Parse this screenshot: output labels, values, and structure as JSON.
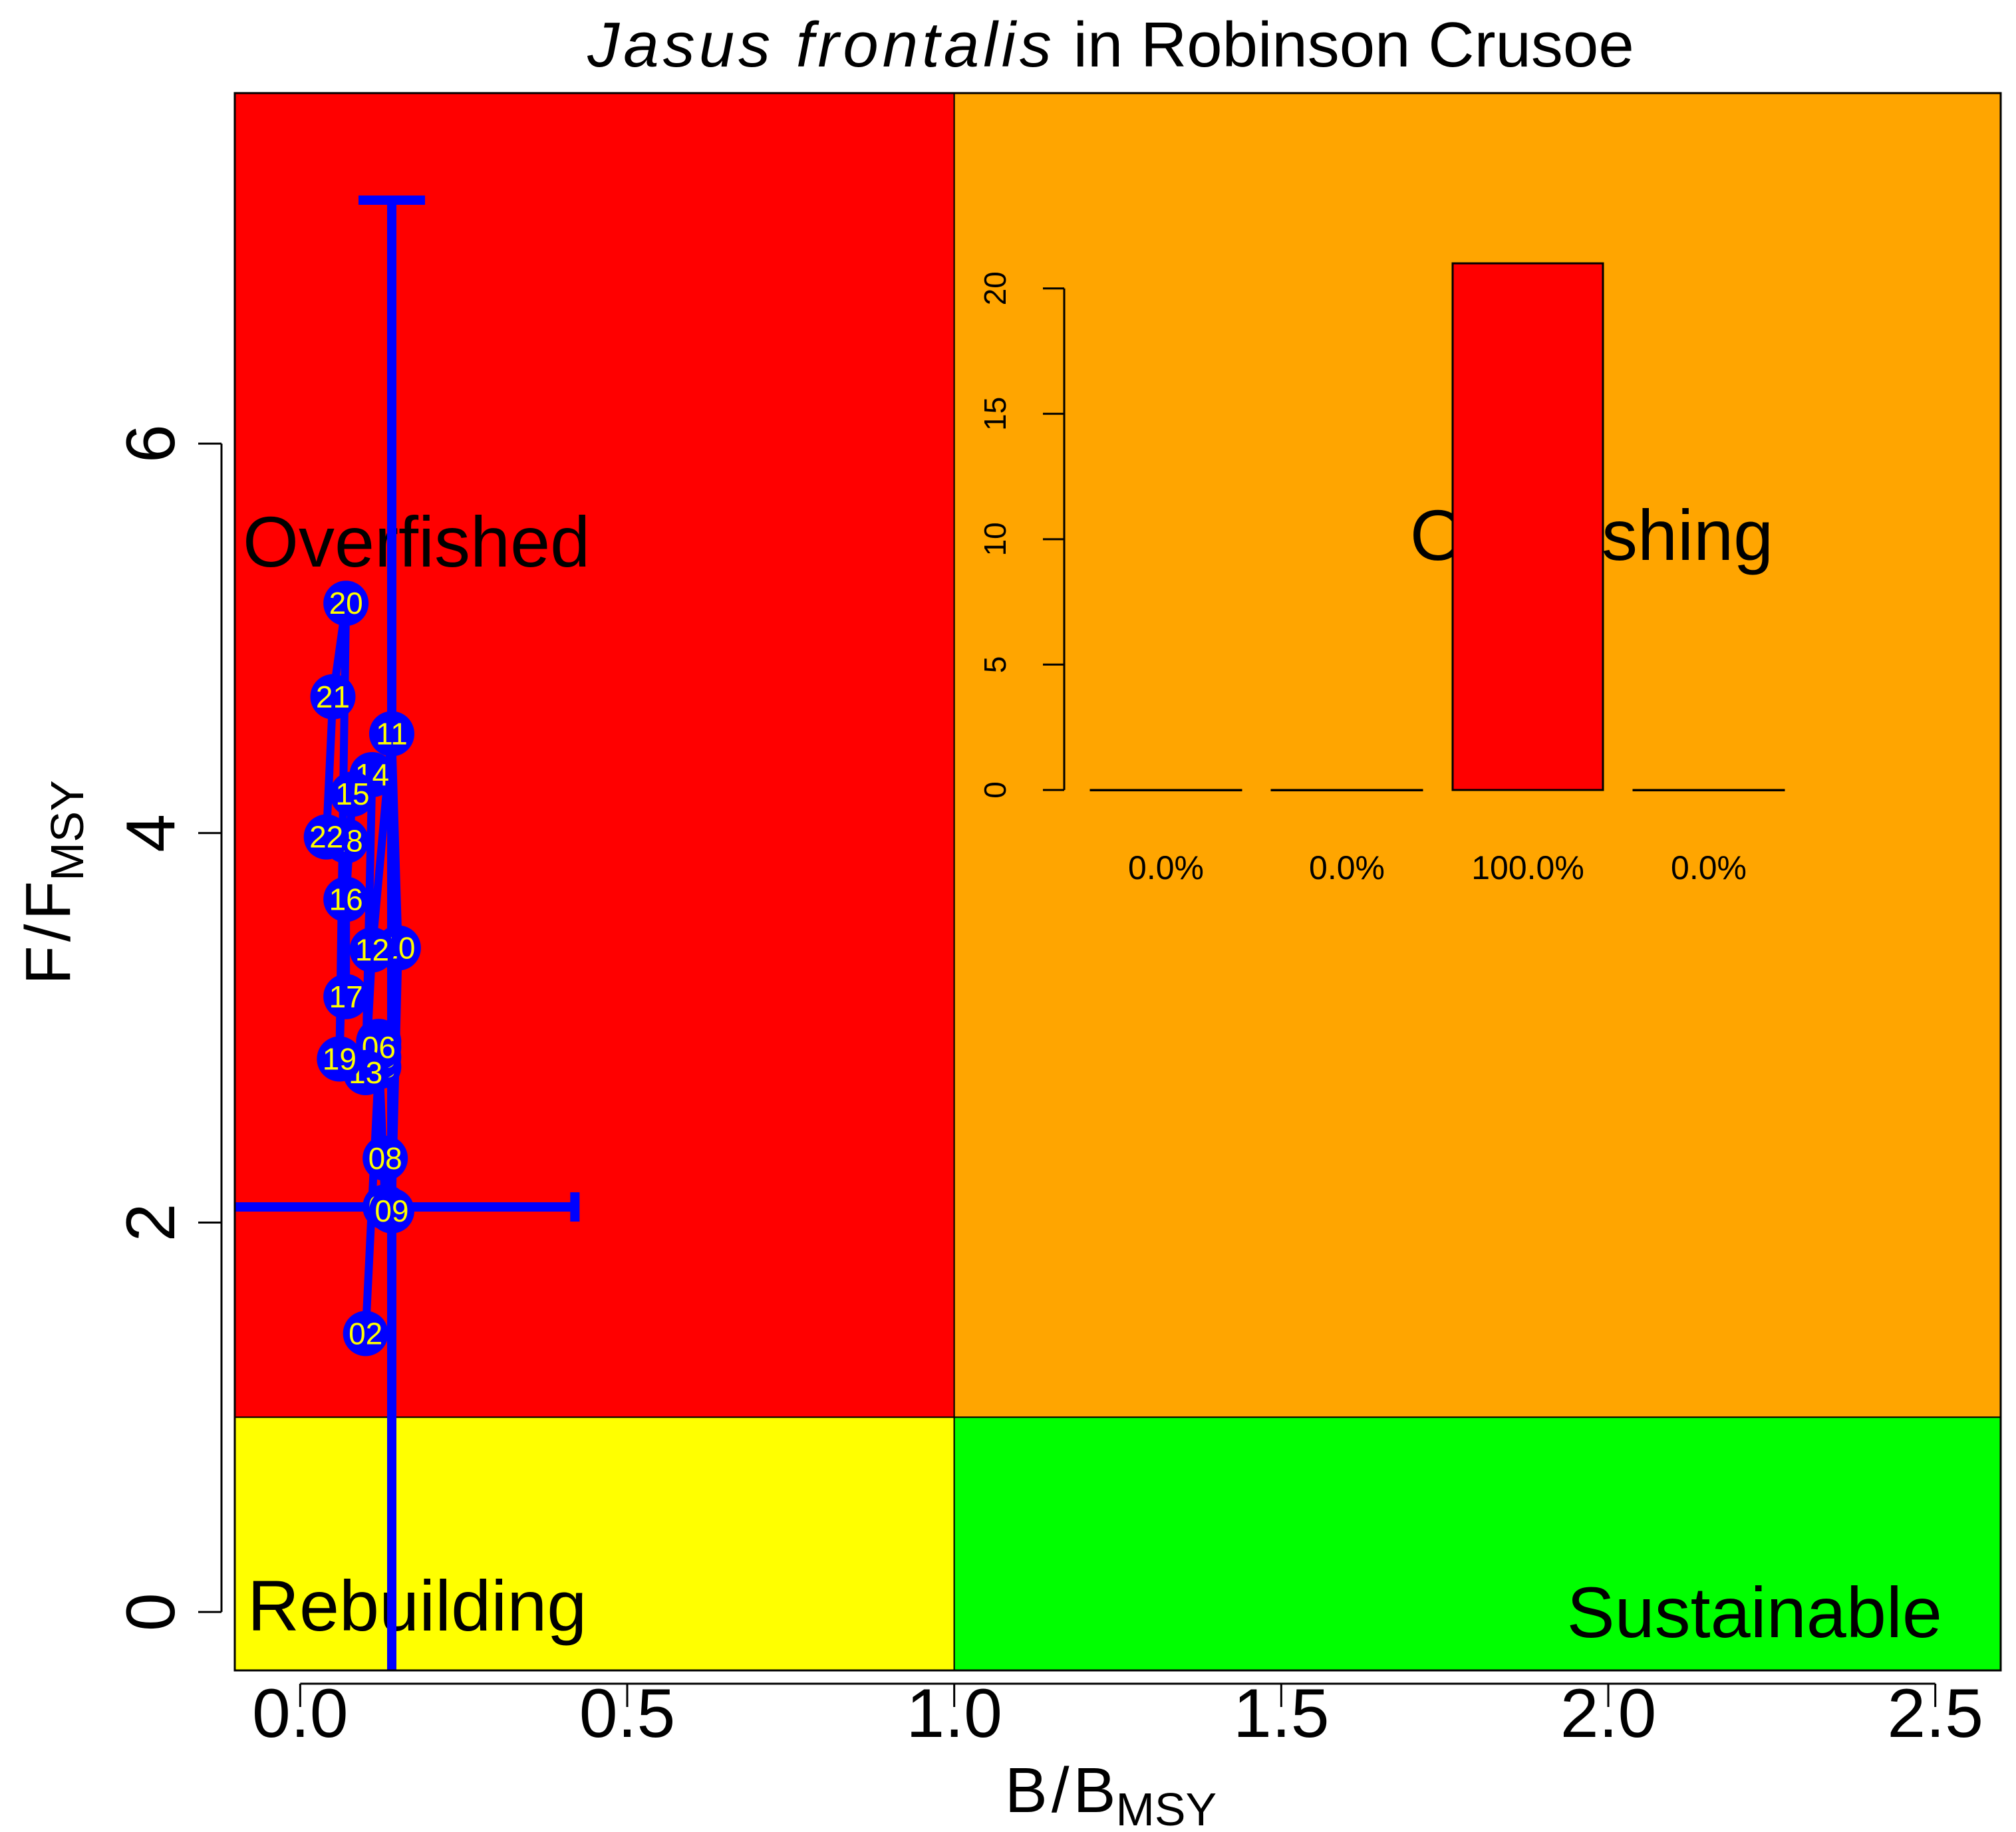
{
  "chart_data": {
    "type": "scatter",
    "title_species": "Jasus frontalis",
    "title_rest": " in Robinson Crusoe",
    "xlabel": {
      "main": "B",
      "slash": "/",
      "sub_main": "B",
      "sub": "MSY"
    },
    "ylabel": {
      "main": "F",
      "slash": "/",
      "sub_main": "F",
      "sub": "MSY"
    },
    "xlim": [
      -0.1,
      2.6
    ],
    "ylim": [
      -0.3,
      7.8
    ],
    "x_ticks": [
      "0.0",
      "0.5",
      "1.0",
      "1.5",
      "2.0",
      "2.5"
    ],
    "y_ticks": [
      "0",
      "2",
      "4",
      "6"
    ],
    "quadrants": [
      {
        "name": "Overfished",
        "label": "Overfished",
        "color": "#ff0000"
      },
      {
        "name": "Overfishing",
        "label": "Overfishing",
        "color": "#ffa500"
      },
      {
        "name": "Rebuilding",
        "label": "Rebuilding",
        "color": "#ffff00"
      },
      {
        "name": "Sustainable",
        "label": "Sustainable",
        "color": "#00ff00"
      }
    ],
    "reference": {
      "b_ratio": 1.0,
      "f_ratio": 1.0
    },
    "trajectory_color": "#0000ff",
    "point_label_color": "#ffff00",
    "points": [
      {
        "label": "02",
        "x": 0.1,
        "y": 1.43
      },
      {
        "label": "03",
        "x": 0.12,
        "y": 2.8
      },
      {
        "label": "04",
        "x": 0.12,
        "y": 2.93
      },
      {
        "label": "05",
        "x": 0.12,
        "y": 2.85
      },
      {
        "label": "06",
        "x": 0.12,
        "y": 2.9
      },
      {
        "label": "07",
        "x": 0.13,
        "y": 2.08
      },
      {
        "label": "08",
        "x": 0.13,
        "y": 2.33
      },
      {
        "label": "09",
        "x": 0.14,
        "y": 2.06
      },
      {
        "label": "10",
        "x": 0.15,
        "y": 3.41
      },
      {
        "label": "11",
        "x": 0.14,
        "y": 4.51
      },
      {
        "label": "12",
        "x": 0.11,
        "y": 3.4
      },
      {
        "label": "13",
        "x": 0.1,
        "y": 2.77
      },
      {
        "label": "14",
        "x": 0.11,
        "y": 4.3
      },
      {
        "label": "15",
        "x": 0.08,
        "y": 4.2
      },
      {
        "label": "16",
        "x": 0.07,
        "y": 3.66
      },
      {
        "label": "17",
        "x": 0.07,
        "y": 3.16
      },
      {
        "label": "18",
        "x": 0.07,
        "y": 3.96
      },
      {
        "label": "19",
        "x": 0.06,
        "y": 2.84
      },
      {
        "label": "20",
        "x": 0.07,
        "y": 5.18
      },
      {
        "label": "21",
        "x": 0.05,
        "y": 4.7
      },
      {
        "label": "22",
        "x": 0.04,
        "y": 3.98
      }
    ],
    "error_bars": {
      "x_center": 0.14,
      "y_center": 2.08,
      "x_range": [
        -0.1,
        0.42
      ],
      "y_range": [
        -0.3,
        7.25
      ]
    },
    "inset": {
      "type": "bar",
      "ylim": [
        0,
        21
      ],
      "y_ticks": [
        "0",
        "5",
        "10",
        "15",
        "20"
      ],
      "values": [
        0,
        0,
        21,
        0
      ],
      "colors": [
        "#ffff00",
        "#00ff00",
        "#ff0000",
        "#ffa500"
      ],
      "labels": [
        "0.0%",
        "0.0%",
        "100.0%",
        "0.0%"
      ]
    }
  }
}
